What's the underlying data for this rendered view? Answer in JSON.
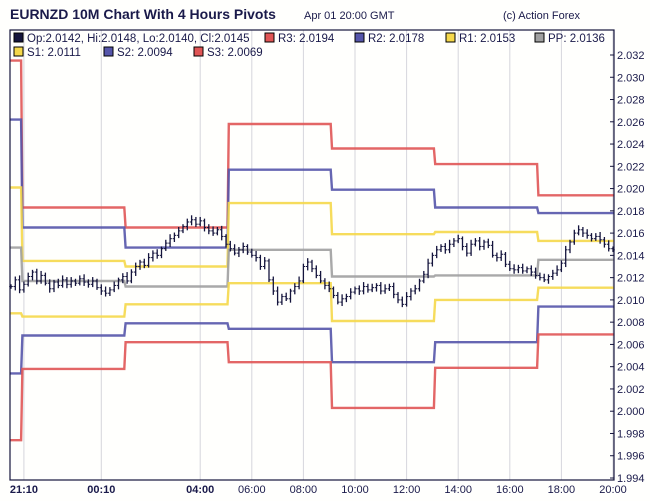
{
  "header": {
    "title": "EURNZD 10M Chart With 4 Hours Pivots",
    "timestamp": "Apr 01 20:00 GMT",
    "credit": "(c) Action Forex"
  },
  "legend": {
    "ohlc": "Op:2.0142, Hi:2.0148, Lo:2.0140, Cl:2.0145",
    "items": [
      {
        "key": "R3",
        "label": "R3: 2.0194",
        "color": "#e05555"
      },
      {
        "key": "R2",
        "label": "R2: 2.0178",
        "color": "#5555aa"
      },
      {
        "key": "R1",
        "label": "R1: 2.0153",
        "color": "#f5d84a"
      },
      {
        "key": "PP",
        "label": "PP: 2.0136",
        "color": "#a0a0a0"
      },
      {
        "key": "S1",
        "label": "S1: 2.0111",
        "color": "#f5d84a"
      },
      {
        "key": "S2",
        "label": "S2: 2.0094",
        "color": "#5555aa"
      },
      {
        "key": "S3",
        "label": "S3: 2.0069",
        "color": "#e05555"
      }
    ],
    "price_color": "#14143c"
  },
  "chart_data": {
    "type": "ohlc",
    "title": "EURNZD 10M Chart With 4 Hours Pivots",
    "ylim": [
      1.994,
      2.032
    ],
    "yticks": [
      "2.032",
      "2.030",
      "2.028",
      "2.026",
      "2.024",
      "2.022",
      "2.020",
      "2.018",
      "2.016",
      "2.014",
      "2.012",
      "2.010",
      "2.008",
      "2.006",
      "2.004",
      "2.002",
      "2.000",
      "1.998",
      "1.996",
      "1.994"
    ],
    "xticks": [
      {
        "label": "21:10",
        "bar": 3,
        "bold": true
      },
      {
        "label": "00:10",
        "bar": 21,
        "bold": true
      },
      {
        "label": "04:00",
        "bar": 44,
        "bold": true
      },
      {
        "label": "06:00",
        "bar": 56,
        "bold": false
      },
      {
        "label": "08:00",
        "bar": 68,
        "bold": false
      },
      {
        "label": "10:00",
        "bar": 80,
        "bold": false
      },
      {
        "label": "12:00",
        "bar": 92,
        "bold": false
      },
      {
        "label": "14:00",
        "bar": 104,
        "bold": false
      },
      {
        "label": "16:00",
        "bar": 116,
        "bold": false
      },
      {
        "label": "18:00",
        "bar": 128,
        "bold": false
      },
      {
        "label": "20:00",
        "bar": 140,
        "bold": false
      }
    ],
    "closes": [
      2.0112,
      2.0118,
      2.0109,
      2.0114,
      2.0121,
      2.0125,
      2.0117,
      2.0122,
      2.0115,
      2.011,
      2.0116,
      2.0113,
      2.0118,
      2.0114,
      2.0117,
      2.0115,
      2.0119,
      2.0116,
      2.0114,
      2.0117,
      2.0111,
      2.0108,
      2.0106,
      2.0109,
      2.0113,
      2.0118,
      2.0121,
      2.0117,
      2.0125,
      2.013,
      2.0134,
      2.0131,
      2.0138,
      2.0142,
      2.014,
      2.0146,
      2.0151,
      2.0155,
      2.0158,
      2.0162,
      2.0166,
      2.017,
      2.0172,
      2.0168,
      2.0171,
      2.0165,
      2.0162,
      2.016,
      2.0163,
      2.0157,
      2.015,
      2.0146,
      2.0142,
      2.0145,
      2.0148,
      2.0143,
      2.014,
      2.0138,
      2.013,
      2.0135,
      2.0118,
      2.0108,
      2.0098,
      2.0103,
      2.0101,
      2.0108,
      2.0112,
      2.0117,
      2.013,
      2.0134,
      2.0128,
      2.0122,
      2.0117,
      2.0113,
      2.011,
      2.0104,
      2.0098,
      2.0101,
      2.0103,
      2.0107,
      2.011,
      2.0108,
      2.0112,
      2.0109,
      2.0111,
      2.0113,
      2.0108,
      2.011,
      2.0112,
      2.0105,
      2.01,
      2.0096,
      2.0103,
      2.0108,
      2.011,
      2.0117,
      2.0123,
      2.0133,
      2.014,
      2.0145,
      2.0148,
      2.0145,
      2.015,
      2.0153,
      2.0155,
      2.0148,
      2.0142,
      2.015,
      2.0153,
      2.0148,
      2.0152,
      2.0149,
      2.014,
      2.0138,
      2.0141,
      2.0132,
      2.0128,
      2.0127,
      2.0129,
      2.0126,
      2.0128,
      2.0125,
      2.0122,
      2.012,
      2.0118,
      2.0121,
      2.0124,
      2.0127,
      2.0133,
      2.0145,
      2.0152,
      2.016,
      2.0163,
      2.016,
      2.0158,
      2.0155,
      2.0157,
      2.0154,
      2.015,
      2.0146,
      2.0145
    ],
    "pivot_periods": [
      {
        "start_bar": 0,
        "end_bar": 2,
        "R3": 2.0315,
        "R2": 2.0262,
        "R1": 2.0201,
        "PP": 2.0147,
        "S1": 2.0088,
        "S2": 2.0034,
        "S3": 1.9974
      },
      {
        "start_bar": 3,
        "end_bar": 26,
        "R3": 2.0183,
        "R2": 2.0165,
        "R1": 2.0135,
        "PP": 2.0117,
        "S1": 2.0085,
        "S2": 2.0068,
        "S3": 2.0038
      },
      {
        "start_bar": 27,
        "end_bar": 50,
        "R3": 2.0165,
        "R2": 2.0147,
        "R1": 2.013,
        "PP": 2.0112,
        "S1": 2.0096,
        "S2": 2.0079,
        "S3": 2.0062
      },
      {
        "start_bar": 51,
        "end_bar": 74,
        "R3": 2.0258,
        "R2": 2.0217,
        "R1": 2.0187,
        "PP": 2.0145,
        "S1": 2.0115,
        "S2": 2.0074,
        "S3": 2.0044
      },
      {
        "start_bar": 75,
        "end_bar": 98,
        "R3": 2.0236,
        "R2": 2.0199,
        "R1": 2.0159,
        "PP": 2.0121,
        "S1": 2.0081,
        "S2": 2.0044,
        "S3": 2.0003
      },
      {
        "start_bar": 99,
        "end_bar": 122,
        "R3": 2.0222,
        "R2": 2.0183,
        "R1": 2.0161,
        "PP": 2.0122,
        "S1": 2.01,
        "S2": 2.0062,
        "S3": 2.0039
      },
      {
        "start_bar": 123,
        "end_bar": 140,
        "R3": 2.0194,
        "R2": 2.0178,
        "R1": 2.0153,
        "PP": 2.0136,
        "S1": 2.0111,
        "S2": 2.0094,
        "S3": 2.0069
      }
    ]
  }
}
